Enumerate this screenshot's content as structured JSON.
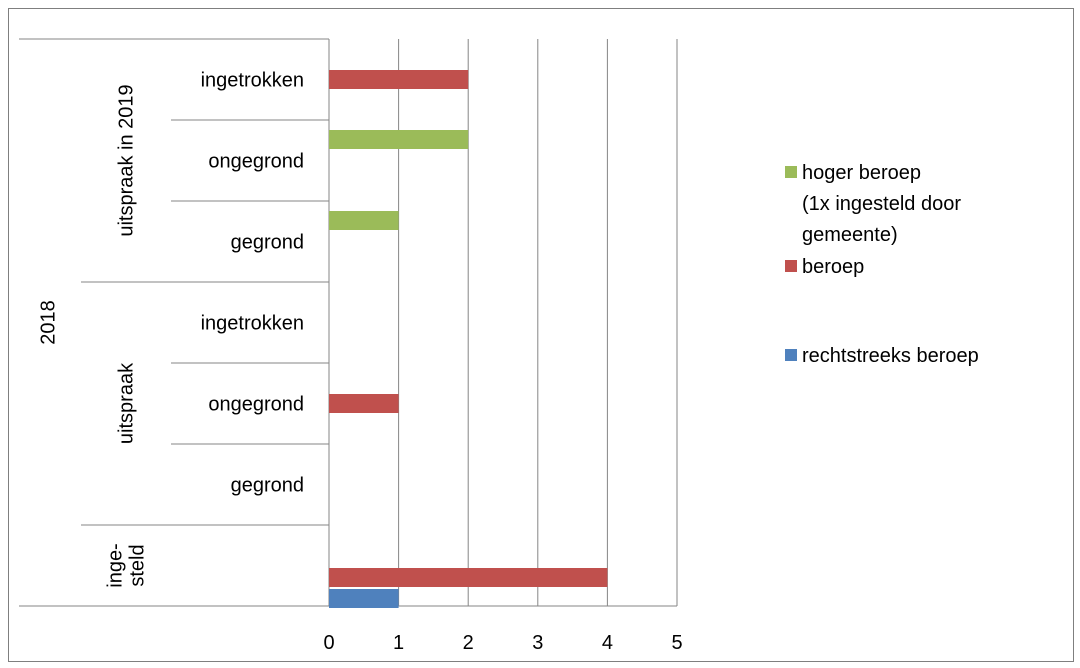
{
  "chart_data": {
    "type": "bar",
    "orientation": "horizontal",
    "grid": true,
    "legend_position": "right",
    "xlim": [
      0,
      5
    ],
    "xticks": [
      "0",
      "1",
      "2",
      "3",
      "4",
      "5"
    ],
    "groups": {
      "top": "2018",
      "middle": [
        {
          "label": "uitspraak in 2019",
          "categories": [
            "ingetrokken",
            "ongegrond",
            "gegrond"
          ]
        },
        {
          "label": "uitspraak",
          "categories": [
            "ingetrokken",
            "ongegrond",
            "gegrond"
          ]
        },
        {
          "label": "inge-\nsteld",
          "categories": [
            ""
          ]
        }
      ]
    },
    "rows": [
      {
        "group": "uitspraak in 2019",
        "category": "ingetrokken",
        "values": {
          "hoger beroep": 0,
          "beroep": 2,
          "rechtstreeks beroep": 0
        }
      },
      {
        "group": "uitspraak in 2019",
        "category": "ongegrond",
        "values": {
          "hoger beroep": 2,
          "beroep": 0,
          "rechtstreeks beroep": 0
        }
      },
      {
        "group": "uitspraak in 2019",
        "category": "gegrond",
        "values": {
          "hoger beroep": 1,
          "beroep": 0,
          "rechtstreeks beroep": 0
        }
      },
      {
        "group": "uitspraak",
        "category": "ingetrokken",
        "values": {
          "hoger beroep": 0,
          "beroep": 0,
          "rechtstreeks beroep": 0
        }
      },
      {
        "group": "uitspraak",
        "category": "ongegrond",
        "values": {
          "hoger beroep": 0,
          "beroep": 1,
          "rechtstreeks beroep": 0
        }
      },
      {
        "group": "uitspraak",
        "category": "gegrond",
        "values": {
          "hoger beroep": 0,
          "beroep": 0,
          "rechtstreeks beroep": 0
        }
      },
      {
        "group": "inge-\nsteld",
        "category": "",
        "values": {
          "hoger beroep": 0,
          "beroep": 4,
          "rechtstreeks beroep": 1
        }
      }
    ],
    "series": [
      {
        "name": "hoger beroep (1x ingesteld door gemeente)",
        "legend_lines": [
          "hoger beroep",
          "(1x ingesteld door",
          "gemeente)"
        ],
        "key": "hoger beroep",
        "color": "#9bbb59"
      },
      {
        "name": "beroep",
        "legend_lines": [
          "beroep"
        ],
        "key": "beroep",
        "color": "#c0504d"
      },
      {
        "name": "rechtstreeks beroep",
        "legend_lines": [
          "rechtstreeks beroep"
        ],
        "key": "rechtstreeks beroep",
        "color": "#4f81bd"
      }
    ]
  }
}
